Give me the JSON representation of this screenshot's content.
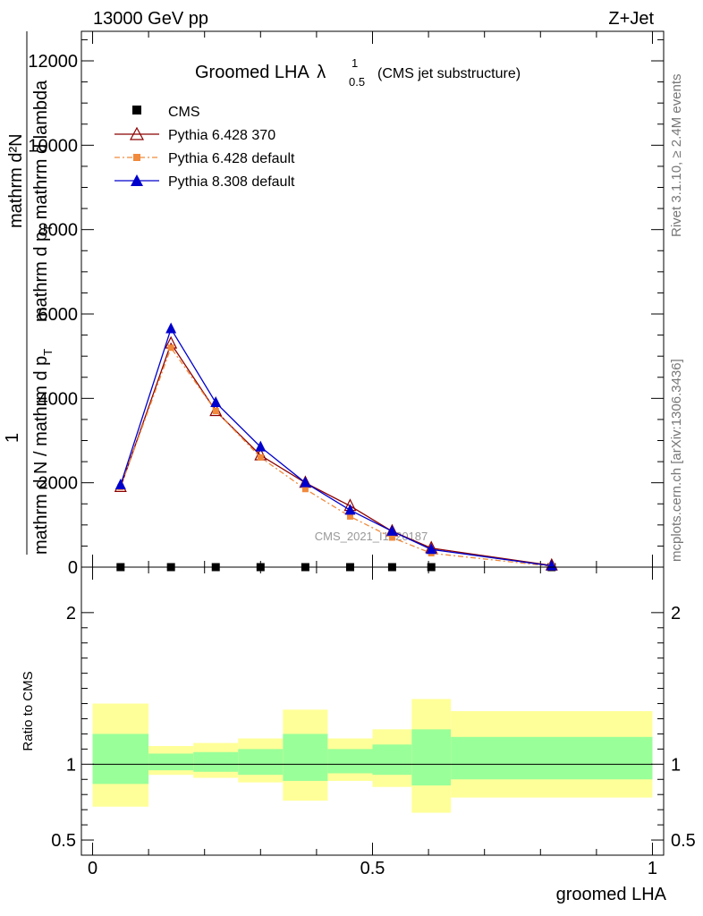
{
  "header": {
    "left": "13000 GeV pp",
    "right": "Z+Jet"
  },
  "side_labels": {
    "rivet": "Rivet 3.1.10, ≥ 2.4M events",
    "mcplots": "mcplots.cern.ch [arXiv:1306.3436]"
  },
  "watermark": "CMS_2021_I1920187",
  "title": {
    "main": "Groomed LHA",
    "lambda": "λ",
    "sup": "1",
    "sub": "0.5",
    "rest": "(CMS jet substructure)"
  },
  "ylabel_top": {
    "numerator": "mathrm d²N",
    "denominator": "mathrm d p",
    "denominator_sub": "T",
    "denominator_rest": " mathrm d lambda",
    "prefix_num": "1",
    "prefix_den": "mathrm d N / mathrm d p",
    "prefix_den_sub": "T"
  },
  "ylabel_ratio": "Ratio to CMS",
  "xlabel": "groomed LHA",
  "legend": [
    "CMS",
    "Pythia 6.428 370",
    "Pythia 6.428 default",
    "Pythia 8.308 default"
  ],
  "colors": {
    "data": "#000000",
    "p6_370": "#8b0000",
    "p6_def": "#f08a3c",
    "p8": "#0000cc",
    "band_inner": "#99ff99",
    "band_outer": "#ffff99"
  },
  "chart_data": [
    {
      "type": "line",
      "x": [
        0.05,
        0.14,
        0.22,
        0.3,
        0.38,
        0.46,
        0.535,
        0.605,
        0.82
      ],
      "series": [
        {
          "name": "CMS",
          "values": [
            0,
            0,
            0,
            0,
            0,
            0,
            0,
            0,
            0
          ],
          "marker": "square"
        },
        {
          "name": "Pythia 6.428 370",
          "values": [
            1900,
            5300,
            3700,
            2650,
            2000,
            1450,
            850,
            450,
            40
          ],
          "marker": "open-triangle"
        },
        {
          "name": "Pythia 6.428 default",
          "values": [
            1900,
            5200,
            3700,
            2600,
            1850,
            1200,
            700,
            330,
            20
          ],
          "marker": "square",
          "dashed": true
        },
        {
          "name": "Pythia 8.308 default",
          "values": [
            1950,
            5650,
            3900,
            2850,
            2000,
            1350,
            850,
            420,
            30
          ],
          "marker": "triangle"
        }
      ],
      "xlim": [
        -0.02,
        1.02
      ],
      "ylim": [
        0,
        12700
      ],
      "yticks": [
        0,
        2000,
        4000,
        6000,
        8000,
        10000,
        12000
      ],
      "yticklabels": [
        "0",
        "2000",
        "4000",
        "6000",
        "8000",
        "10000",
        "12000"
      ]
    },
    {
      "type": "area",
      "bins": [
        0,
        0.1,
        0.18,
        0.26,
        0.34,
        0.42,
        0.5,
        0.57,
        0.64,
        1.0
      ],
      "inner_low": [
        0.87,
        0.96,
        0.95,
        0.93,
        0.89,
        0.94,
        0.93,
        0.86,
        0.9
      ],
      "inner_high": [
        1.2,
        1.07,
        1.08,
        1.1,
        1.2,
        1.1,
        1.13,
        1.23,
        1.18
      ],
      "outer_low": [
        0.72,
        0.93,
        0.91,
        0.88,
        0.76,
        0.89,
        0.85,
        0.68,
        0.78
      ],
      "outer_high": [
        1.4,
        1.12,
        1.14,
        1.17,
        1.36,
        1.17,
        1.23,
        1.43,
        1.35
      ],
      "xlim": [
        -0.02,
        1.02
      ],
      "ylim": [
        0.4,
        2.3
      ],
      "yticks": [
        0.5,
        1,
        2
      ],
      "yticklabels": [
        "0.5",
        "1",
        "2"
      ],
      "xticks": [
        0,
        0.5,
        1
      ],
      "xticklabels": [
        "0",
        "0.5",
        "1"
      ]
    }
  ]
}
